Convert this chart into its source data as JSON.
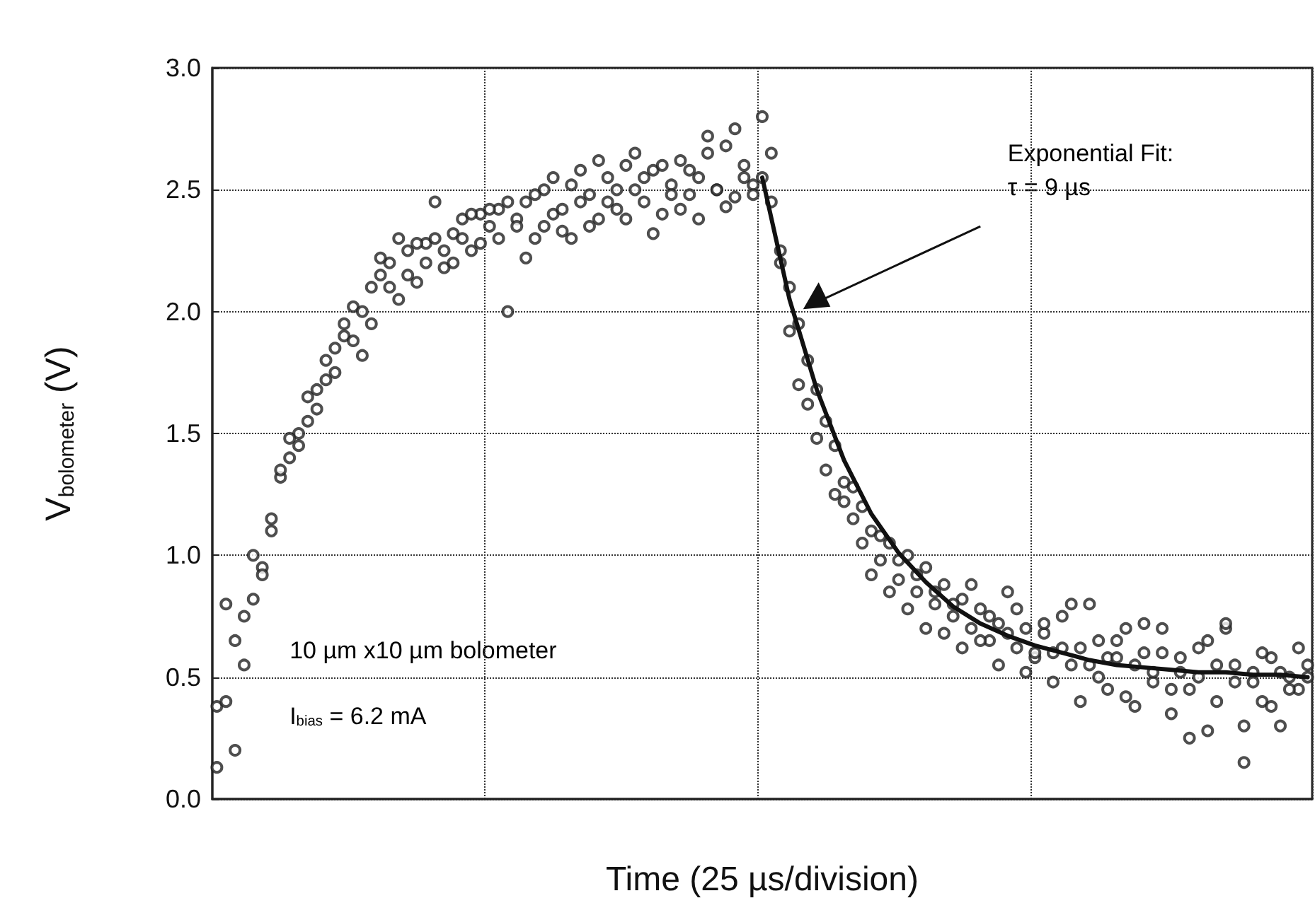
{
  "chart_data": {
    "type": "scatter",
    "xlabel": "Time (25 µs/division)",
    "ylabel": "V$_{bolometer}$ (V)",
    "annotations": [
      "Exponential Fit:\nτ = 9 µs",
      "10 µm x10 µm bolometer",
      "I$_{bias}$ = 6.2 mA"
    ],
    "categories": [
      null,
      null,
      null,
      null,
      null,
      null,
      null,
      null,
      null,
      null,
      null,
      null,
      null,
      null,
      null,
      null,
      null,
      null,
      null,
      null,
      null,
      null,
      null,
      null,
      null,
      null,
      null,
      null,
      null,
      null,
      null,
      null,
      null,
      null,
      null,
      null,
      null,
      null,
      null,
      null,
      null,
      null,
      null,
      null,
      null,
      null,
      null,
      null,
      null,
      null,
      null,
      null,
      null,
      null,
      null,
      null,
      null,
      null,
      null,
      null,
      null,
      null,
      null,
      null,
      null,
      null,
      null,
      null,
      null,
      null,
      null,
      null,
      null,
      null,
      null,
      null,
      null,
      null,
      null,
      null,
      null,
      null,
      null,
      null,
      null,
      null,
      null,
      null,
      null,
      null,
      null,
      null,
      null,
      null,
      null,
      null,
      null,
      null,
      null,
      null,
      null,
      null,
      null,
      null,
      null,
      null,
      null,
      null,
      null,
      null,
      null,
      null,
      null,
      null,
      null,
      null,
      null,
      null,
      null,
      null,
      null
    ],
    "series": [
      {
        "color": "#222222",
        "values": [
          0.38,
          0.8,
          0.2,
          0.55,
          0.82,
          0.95,
          1.1,
          1.32,
          1.4,
          1.5,
          1.55,
          1.68,
          1.72,
          1.85,
          1.9,
          2.02,
          1.82,
          2.1,
          2.15,
          2.2,
          2.05,
          2.25,
          2.12,
          2.28,
          2.3,
          2.18,
          2.32,
          2.38,
          2.25,
          2.4,
          2.35,
          2.42,
          2.0,
          2.38,
          2.45,
          2.3,
          2.5,
          2.4,
          2.33,
          2.52,
          2.45,
          2.48,
          2.38,
          2.55,
          2.42,
          2.6,
          2.5,
          2.45,
          2.58,
          2.4,
          2.52,
          2.62,
          2.48,
          2.55,
          2.72,
          2.5,
          2.68,
          2.47,
          2.55,
          2.52,
          2.8,
          2.45,
          2.25,
          2.1,
          1.95,
          1.8,
          1.68,
          1.55,
          1.45,
          1.3,
          1.28,
          1.2,
          1.1,
          0.98,
          1.05,
          0.9,
          1.0,
          0.85,
          0.95,
          0.8,
          0.88,
          0.75,
          0.82,
          0.7,
          0.78,
          0.65,
          0.72,
          0.85,
          0.62,
          0.7,
          0.58,
          0.68,
          0.6,
          0.75,
          0.55,
          0.62,
          0.8,
          0.5,
          0.58,
          0.65,
          0.42,
          0.55,
          0.72,
          0.48,
          0.6,
          0.35,
          0.52,
          0.45,
          0.62,
          0.28,
          0.55,
          0.7,
          0.48,
          0.15,
          0.52,
          0.4,
          0.58,
          0.3,
          0.5,
          0.45,
          0.55
        ]
      },
      {
        "color": "#222222",
        "values": [
          0.13,
          0.4,
          0.65,
          0.75,
          1.0,
          0.92,
          1.15,
          1.35,
          1.48,
          1.45,
          1.65,
          1.6,
          1.8,
          1.75,
          1.95,
          1.88,
          2.0,
          1.95,
          2.22,
          2.1,
          2.3,
          2.15,
          2.28,
          2.2,
          2.45,
          2.25,
          2.2,
          2.3,
          2.4,
          2.28,
          2.42,
          2.3,
          2.45,
          2.35,
          2.22,
          2.48,
          2.35,
          2.55,
          2.42,
          2.3,
          2.58,
          2.35,
          2.62,
          2.45,
          2.5,
          2.38,
          2.65,
          2.55,
          2.32,
          2.6,
          2.48,
          2.42,
          2.58,
          2.38,
          2.65,
          2.5,
          2.43,
          2.75,
          2.6,
          2.48,
          2.55,
          2.65,
          2.2,
          1.92,
          1.7,
          1.62,
          1.48,
          1.35,
          1.25,
          1.22,
          1.15,
          1.05,
          0.92,
          1.08,
          0.85,
          0.98,
          0.78,
          0.92,
          0.7,
          0.85,
          0.68,
          0.8,
          0.62,
          0.88,
          0.65,
          0.75,
          0.55,
          0.68,
          0.78,
          0.52,
          0.6,
          0.72,
          0.48,
          0.62,
          0.8,
          0.4,
          0.55,
          0.65,
          0.45,
          0.58,
          0.7,
          0.38,
          0.6,
          0.52,
          0.7,
          0.45,
          0.58,
          0.25,
          0.5,
          0.65,
          0.4,
          0.72,
          0.55,
          0.3,
          0.48,
          0.6,
          0.38,
          0.52,
          0.45,
          0.62,
          0.5
        ]
      },
      {
        "type": "line",
        "color": "#111111",
        "line_style": "solid",
        "marker": "none",
        "values": [
          null,
          null,
          null,
          null,
          null,
          null,
          null,
          null,
          null,
          null,
          null,
          null,
          null,
          null,
          null,
          null,
          null,
          null,
          null,
          null,
          null,
          null,
          null,
          null,
          null,
          null,
          null,
          null,
          null,
          null,
          null,
          null,
          null,
          null,
          null,
          null,
          null,
          null,
          null,
          null,
          null,
          null,
          null,
          null,
          null,
          null,
          null,
          null,
          null,
          null,
          null,
          null,
          null,
          null,
          null,
          null,
          null,
          null,
          null,
          null,
          2.55,
          null,
          null,
          2.05,
          null,
          null,
          1.68,
          null,
          null,
          1.39,
          null,
          null,
          1.17,
          null,
          null,
          1.01,
          null,
          null,
          0.89,
          null,
          null,
          0.79,
          null,
          null,
          0.72,
          null,
          null,
          0.67,
          null,
          null,
          0.63,
          null,
          null,
          0.6,
          null,
          null,
          0.57,
          null,
          null,
          0.55,
          null,
          null,
          0.54,
          null,
          null,
          0.53,
          null,
          null,
          0.52,
          null,
          null,
          0.52,
          null,
          null,
          0.51,
          null,
          null,
          0.51,
          null,
          null,
          0.5
        ]
      }
    ],
    "marker": "circle",
    "ylim": [
      0,
      3
    ],
    "yticks": [
      {
        "value": 0,
        "label": "0.0"
      },
      {
        "value": 0.5,
        "label": "0.5"
      },
      {
        "value": 1,
        "label": "1.0"
      },
      {
        "value": 1.5,
        "label": "1.5"
      },
      {
        "value": 2,
        "label": "2.0"
      },
      {
        "value": 2.5,
        "label": "2.5"
      },
      {
        "value": 3,
        "label": "3.0"
      }
    ],
    "grid": true,
    "tick_labels": "y"
  }
}
